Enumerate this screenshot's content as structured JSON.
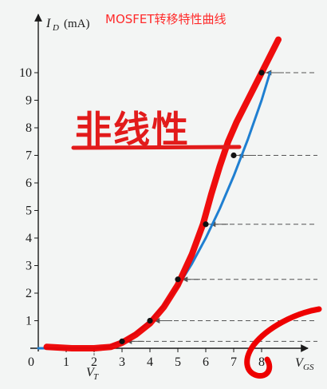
{
  "chart_data": {
    "type": "line",
    "title": "MOSFET转移特性曲线",
    "annotation": "非线性",
    "xlabel": {
      "main": "V",
      "sub": "GS"
    },
    "ylabel": {
      "main": "I",
      "sub": "D",
      "unit": "(mA)"
    },
    "threshold_label": {
      "main": "V",
      "sub": "T"
    },
    "xlim": [
      0,
      9.5
    ],
    "ylim": [
      0,
      11.5
    ],
    "x_ticks": [
      "0",
      "1",
      "2",
      "3",
      "4",
      "5",
      "6",
      "7",
      "8"
    ],
    "y_ticks": [
      "1",
      "2",
      "3",
      "4",
      "5",
      "6",
      "7",
      "8",
      "9",
      "10"
    ],
    "points": [
      {
        "x": 3,
        "y": 0.25
      },
      {
        "x": 4,
        "y": 1.0
      },
      {
        "x": 5,
        "y": 2.5
      },
      {
        "x": 6,
        "y": 4.5
      },
      {
        "x": 7,
        "y": 7.0
      },
      {
        "x": 8,
        "y": 10.0
      }
    ],
    "series": [
      {
        "style": "blue-line",
        "color": "#1f7fd1",
        "x": [
          0,
          2,
          2.5,
          3,
          3.5,
          4,
          4.5,
          5,
          5.5,
          6,
          6.5,
          7,
          7.5,
          8,
          8.3
        ],
        "y": [
          0,
          0,
          0.06,
          0.25,
          0.56,
          1.0,
          1.56,
          2.25,
          3.06,
          4.0,
          5.06,
          6.25,
          7.56,
          9.0,
          10.0
        ]
      },
      {
        "style": "red-hand-drawn",
        "color": "#ee0000",
        "x": [
          0.3,
          1.2,
          2.0,
          2.6,
          3.0,
          3.5,
          4.0,
          4.5,
          5.0,
          5.5,
          5.9,
          6.2,
          6.5,
          6.8,
          7.1,
          7.5,
          7.9,
          8.3,
          8.6
        ],
        "y": [
          0.05,
          0.0,
          0.0,
          0.05,
          0.2,
          0.5,
          0.9,
          1.5,
          2.3,
          3.4,
          4.5,
          5.6,
          6.6,
          7.5,
          8.2,
          9.0,
          9.8,
          10.6,
          11.2
        ]
      }
    ],
    "colors": {
      "accent": "#ff2a2a",
      "annotation": "#e21b1b",
      "axis": "#1a1a1a",
      "dash": "#555555"
    }
  }
}
